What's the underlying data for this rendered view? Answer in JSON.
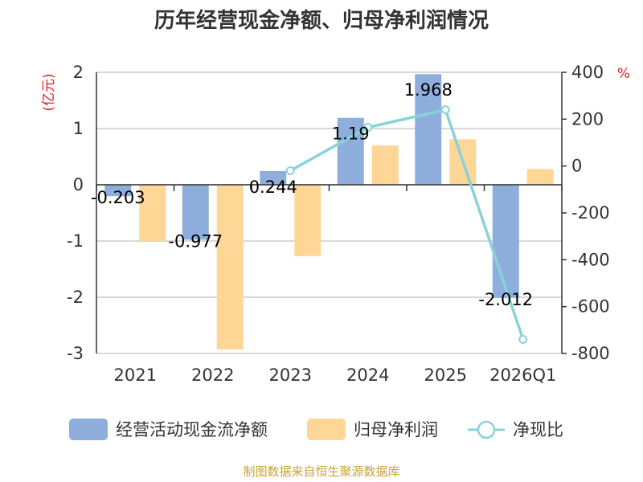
{
  "chart_data": {
    "type": "bar",
    "title": "历年经营现金净额、归母净利润情况",
    "categories": [
      "2021",
      "2022",
      "2023",
      "2024",
      "2025",
      "2026Q1"
    ],
    "y_left": {
      "unit": "(亿元)",
      "ylim": [
        -3,
        2
      ],
      "ticks": [
        "2",
        "1",
        "0",
        "-1",
        "-2",
        "-3"
      ]
    },
    "y_right": {
      "unit": "%",
      "ylim": [
        -800,
        400
      ],
      "ticks": [
        "400",
        "200",
        "0",
        "-200",
        "-400",
        "-600",
        "-800"
      ]
    },
    "series": [
      {
        "name": "经营活动现金流净额",
        "kind": "bar",
        "axis": "left",
        "color": "#8eaedc",
        "values": [
          -0.203,
          -0.977,
          0.244,
          1.19,
          1.968,
          -2.012
        ],
        "labels": [
          "-0.203",
          "-0.977",
          "0.244",
          "1.19",
          "1.968",
          "-2.012"
        ]
      },
      {
        "name": "归母净利润",
        "kind": "bar",
        "axis": "left",
        "color": "#fed796",
        "values": [
          -1.0,
          -2.93,
          -1.27,
          0.7,
          0.81,
          0.28
        ]
      },
      {
        "name": "净现比",
        "kind": "line",
        "axis": "right",
        "color": "#88d3d8",
        "values": [
          null,
          null,
          -20,
          165,
          240,
          -740
        ]
      }
    ],
    "grid": true,
    "legend_position": "bottom"
  },
  "source": "制图数据来自恒生聚源数据库"
}
